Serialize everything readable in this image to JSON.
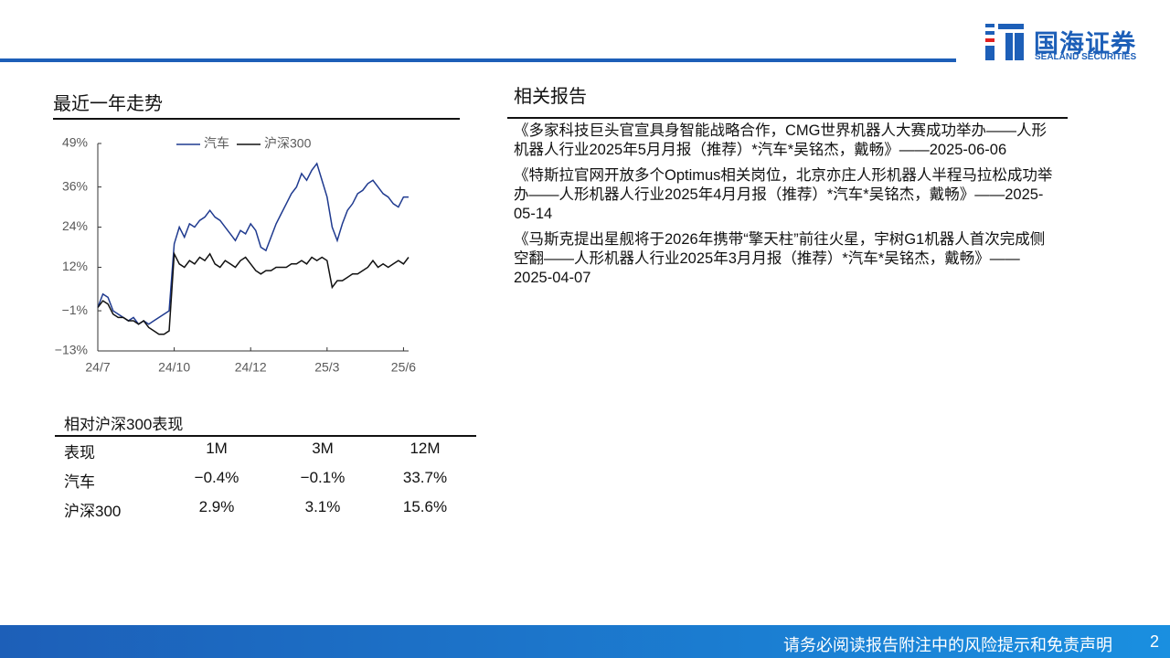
{
  "header": {
    "logo_cn": "国海证券",
    "logo_en": "SEALAND SECURITIES"
  },
  "trend_title": "最近一年走势",
  "chart_data": {
    "type": "line",
    "categories": [
      "24/7",
      null,
      null,
      null,
      null,
      null,
      null,
      null,
      null,
      null,
      null,
      null,
      null,
      null,
      null,
      "24/10",
      null,
      null,
      null,
      null,
      null,
      null,
      null,
      null,
      null,
      null,
      null,
      null,
      null,
      null,
      "24/12",
      null,
      null,
      null,
      null,
      null,
      null,
      null,
      null,
      null,
      null,
      null,
      null,
      null,
      null,
      "25/3",
      null,
      null,
      null,
      null,
      null,
      null,
      null,
      null,
      null,
      null,
      null,
      null,
      null,
      null,
      "25/6",
      null
    ],
    "series": [
      {
        "name": "汽车",
        "color": "#1f3a8f",
        "values": [
          0,
          4,
          3,
          -1,
          -2,
          -3,
          -4,
          -3,
          -5,
          -4,
          -5,
          -4,
          -3,
          -2,
          -1,
          19,
          24,
          21,
          25,
          24,
          26,
          27,
          29,
          27,
          26,
          24,
          22,
          20,
          23,
          22,
          25,
          23,
          18,
          17,
          21,
          25,
          28,
          31,
          34,
          36,
          40,
          38,
          41,
          43,
          38,
          33,
          24,
          20,
          25,
          29,
          31,
          34,
          35,
          37,
          38,
          36,
          34,
          33,
          31,
          30,
          33,
          33
        ]
      },
      {
        "name": "沪深300",
        "color": "#111111",
        "values": [
          0,
          2,
          1,
          -2,
          -3,
          -3,
          -4,
          -4,
          -5,
          -4,
          -6,
          -7,
          -8,
          -8,
          -7,
          16,
          13,
          12,
          14,
          13,
          15,
          14,
          16,
          13,
          12,
          14,
          13,
          12,
          14,
          15,
          13,
          11,
          10,
          11,
          11,
          12,
          12,
          12,
          13,
          13,
          14,
          13,
          15,
          14,
          15,
          14,
          6,
          8,
          8,
          9,
          10,
          10,
          11,
          12,
          14,
          12,
          13,
          12,
          13,
          14,
          13,
          15
        ]
      }
    ],
    "ylim": [
      -13,
      49
    ],
    "yticks": [
      {
        "value": -13,
        "label": "−13%"
      },
      {
        "value": -1,
        "label": "−1%"
      },
      {
        "value": 12,
        "label": "12%"
      },
      {
        "value": 24,
        "label": "24%"
      },
      {
        "value": 36,
        "label": "36%"
      },
      {
        "value": 49,
        "label": "49%"
      }
    ],
    "grid": false,
    "legend": "top"
  },
  "performance": {
    "title": "相对沪深300表现",
    "header": [
      "表现",
      "1M",
      "3M",
      "12M"
    ],
    "rows": [
      [
        "汽车",
        "−0.4%",
        "−0.1%",
        "33.7%"
      ],
      [
        "沪深300",
        "2.9%",
        "3.1%",
        "15.6%"
      ]
    ]
  },
  "reports": {
    "title": "相关报告",
    "items": [
      "《多家科技巨头官宣具身智能战略合作，CMG世界机器人大赛成功举办——人形机器人行业2025年5月月报（推荐）*汽车*吴铭杰，戴畅》——2025-06-06",
      "《特斯拉官网开放多个Optimus相关岗位，北京亦庄人形机器人半程马拉松成功举办——人形机器人行业2025年4月月报（推荐）*汽车*吴铭杰，戴畅》——2025-05-14",
      "《马斯克提出星舰将于2026年携带“擎天柱”前往火星，宇树G1机器人首次完成侧空翻——人形机器人行业2025年3月月报（推荐）*汽车*吴铭杰，戴畅》——2025-04-07"
    ]
  },
  "footer": {
    "disclaimer": "请务必阅读报告附注中的风险提示和免责声明",
    "page": "2"
  }
}
